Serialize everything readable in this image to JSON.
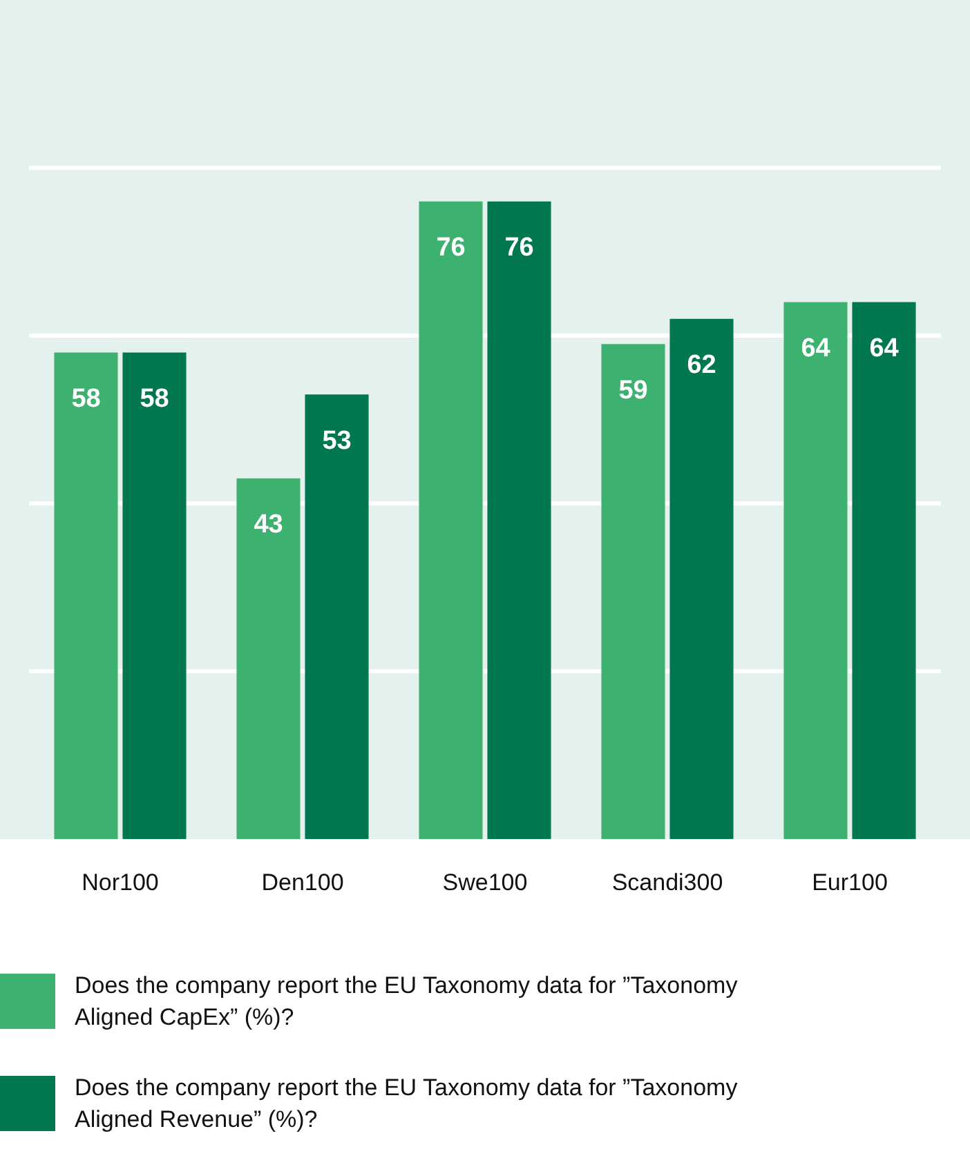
{
  "chart_data": {
    "type": "bar",
    "categories": [
      "Nor100",
      "Den100",
      "Swe100",
      "Scandi300",
      "Eur100"
    ],
    "series": [
      {
        "name": "Does the company report the EU Taxonomy data for ”Taxonomy Aligned CapEx” (%)?",
        "color": "#3db170",
        "values": [
          58,
          43,
          76,
          59,
          64
        ]
      },
      {
        "name": "Does the company report the EU Taxonomy data for ”Taxonomy Aligned Revenue” (%)?",
        "color": "#00774f",
        "values": [
          58,
          53,
          76,
          62,
          64
        ]
      }
    ],
    "ylim": [
      0,
      100
    ],
    "yticks": [
      {
        "value": 20,
        "label": null
      },
      {
        "value": 40,
        "label": null
      },
      {
        "value": 60,
        "label": null
      },
      {
        "value": 80,
        "label": null
      }
    ],
    "tick_labels": "x",
    "grid": "y",
    "data_labels": true,
    "legend": "bottom"
  }
}
